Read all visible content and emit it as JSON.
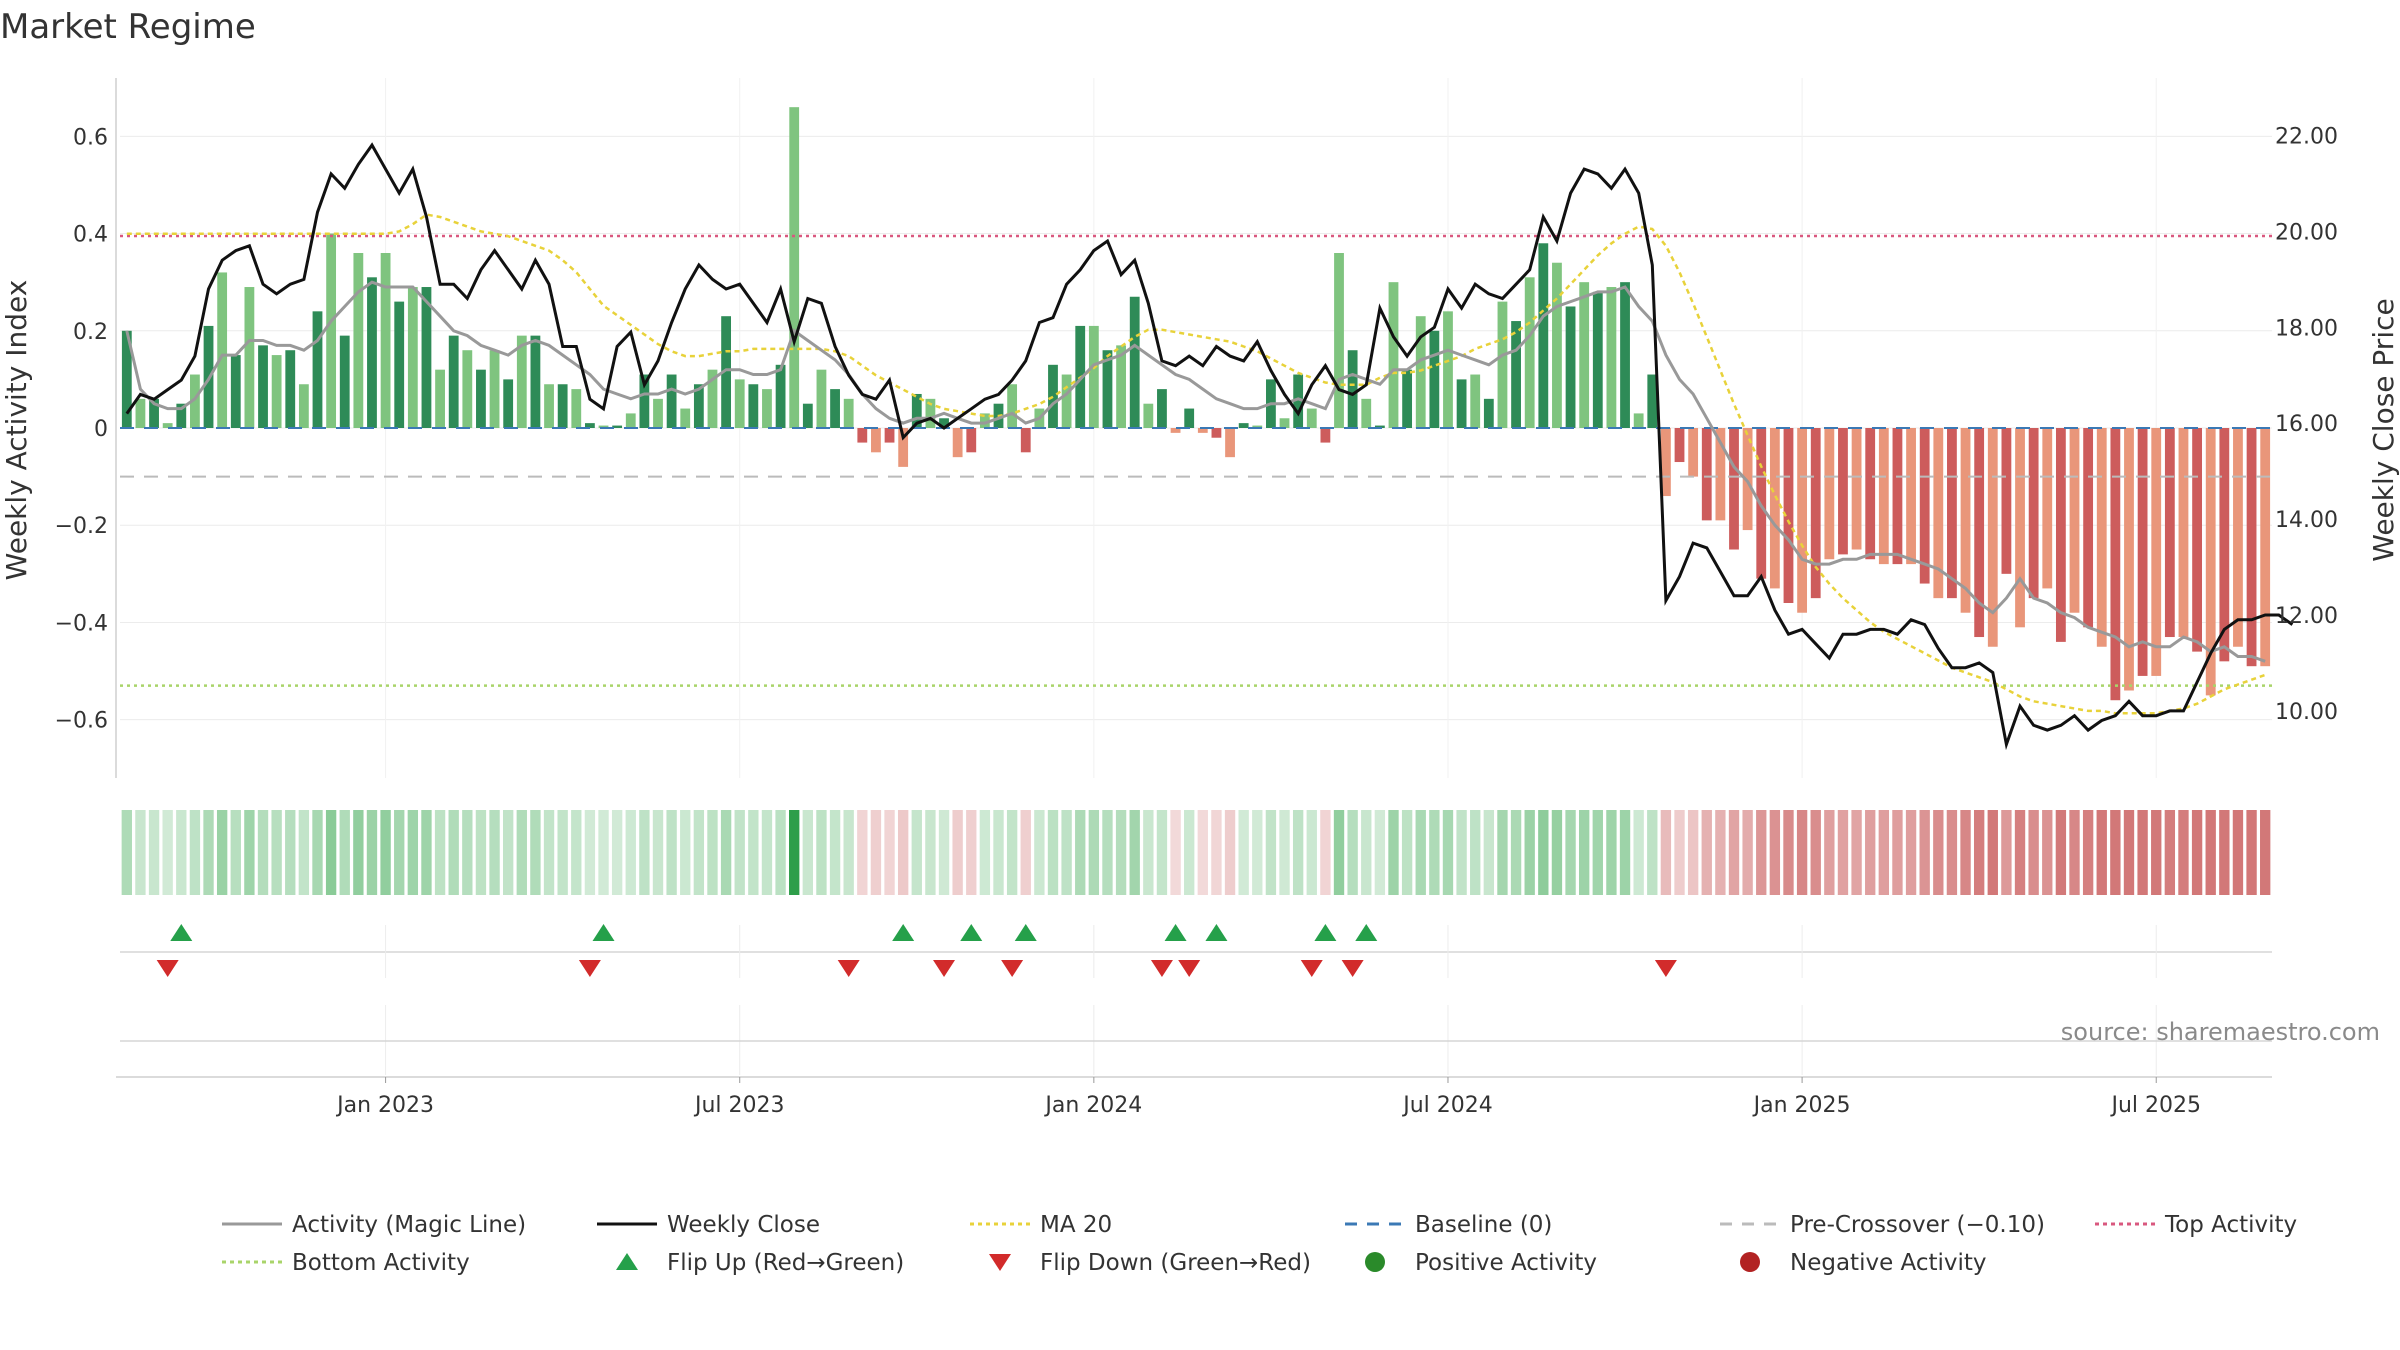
{
  "chart_data": {
    "type": "bar",
    "title": "Market Regime",
    "ylabel": "Weekly Activity Index",
    "y2label": "Weekly Close Price",
    "ylim": [
      -0.72,
      0.72
    ],
    "y2lim": [
      8.6,
      23.2
    ],
    "yticks": [
      {
        "value": 0.6,
        "label": "0.6"
      },
      {
        "value": 0.4,
        "label": "0.4"
      },
      {
        "value": 0.2,
        "label": "0.2"
      },
      {
        "value": 0,
        "label": "0"
      },
      {
        "value": -0.2,
        "label": "−0.2"
      },
      {
        "value": -0.4,
        "label": "−0.4"
      },
      {
        "value": -0.6,
        "label": "−0.6"
      }
    ],
    "y2ticks": [
      {
        "value": 22,
        "label": "22.00"
      },
      {
        "value": 20,
        "label": "20.00"
      },
      {
        "value": 18,
        "label": "18.00"
      },
      {
        "value": 16,
        "label": "16.00"
      },
      {
        "value": 14,
        "label": "14.00"
      },
      {
        "value": 12,
        "label": "12.00"
      },
      {
        "value": 10,
        "label": "10.00"
      }
    ],
    "xticks": [
      {
        "week": 19,
        "label": "Jan 2023"
      },
      {
        "week": 45,
        "label": "Jul 2023"
      },
      {
        "week": 71,
        "label": "Jan 2024"
      },
      {
        "week": 97,
        "label": "Jul 2024"
      },
      {
        "week": 123,
        "label": "Jan 2025"
      },
      {
        "week": 149,
        "label": "Jul 2025"
      }
    ],
    "activity": [
      0.2,
      0.06,
      0.06,
      0.01,
      0.05,
      0.11,
      0.21,
      0.32,
      0.15,
      0.29,
      0.17,
      0.15,
      0.16,
      0.09,
      0.24,
      0.4,
      0.19,
      0.36,
      0.31,
      0.36,
      0.26,
      0.29,
      0.29,
      0.12,
      0.19,
      0.16,
      0.12,
      0.16,
      0.1,
      0.19,
      0.19,
      0.09,
      0.09,
      0.08,
      0.01,
      0.005,
      0.005,
      0.03,
      0.11,
      0.06,
      0.11,
      0.04,
      0.09,
      0.12,
      0.23,
      0.1,
      0.09,
      0.08,
      0.13,
      0.66,
      0.05,
      0.12,
      0.08,
      0.06,
      -0.03,
      -0.05,
      -0.03,
      -0.08,
      0.07,
      0.06,
      0.02,
      -0.06,
      -0.05,
      0.03,
      0.05,
      0.09,
      -0.05,
      0.04,
      0.13,
      0.11,
      0.21,
      0.21,
      0.16,
      0.17,
      0.27,
      0.05,
      0.08,
      -0.01,
      0.04,
      -0.01,
      -0.02,
      -0.06,
      0.01,
      0.005,
      0.1,
      0.02,
      0.11,
      0.04,
      -0.03,
      0.36,
      0.16,
      0.06,
      0.005,
      0.3,
      0.12,
      0.23,
      0.2,
      0.24,
      0.1,
      0.11,
      0.06,
      0.26,
      0.22,
      0.31,
      0.38,
      0.34,
      0.25,
      0.3,
      0.28,
      0.29,
      0.3,
      0.03,
      0.11,
      -0.14,
      -0.07,
      -0.1,
      -0.19,
      -0.19,
      -0.25,
      -0.21,
      -0.31,
      -0.33,
      -0.36,
      -0.38,
      -0.35,
      -0.27,
      -0.26,
      -0.25,
      -0.27,
      -0.28,
      -0.28,
      -0.28,
      -0.32,
      -0.35,
      -0.35,
      -0.38,
      -0.43,
      -0.45,
      -0.3,
      -0.41,
      -0.35,
      -0.33,
      -0.44,
      -0.38,
      -0.41,
      -0.45,
      -0.56,
      -0.54,
      -0.51,
      -0.51,
      -0.43,
      -0.43,
      -0.46,
      -0.55,
      -0.48,
      -0.45,
      -0.49,
      -0.49
    ],
    "close": [
      16.2,
      16.6,
      16.5,
      16.7,
      16.9,
      17.4,
      18.8,
      19.4,
      19.6,
      19.7,
      18.9,
      18.7,
      18.9,
      19.0,
      20.4,
      21.2,
      20.9,
      21.4,
      21.8,
      21.3,
      20.8,
      21.3,
      20.3,
      18.9,
      18.9,
      18.6,
      19.2,
      19.6,
      19.2,
      18.8,
      19.4,
      18.9,
      17.6,
      17.6,
      16.5,
      16.3,
      17.6,
      17.9,
      16.8,
      17.3,
      18.1,
      18.8,
      19.3,
      19.0,
      18.8,
      18.9,
      18.5,
      18.1,
      18.8,
      17.7,
      18.6,
      18.5,
      17.6,
      17.0,
      16.6,
      16.5,
      16.9,
      15.7,
      16.0,
      16.1,
      15.9,
      16.1,
      16.3,
      16.5,
      16.6,
      16.9,
      17.3,
      18.1,
      18.2,
      18.9,
      19.2,
      19.6,
      19.8,
      19.1,
      19.4,
      18.5,
      17.3,
      17.2,
      17.4,
      17.2,
      17.6,
      17.4,
      17.3,
      17.7,
      17.1,
      16.6,
      16.2,
      16.8,
      17.2,
      16.7,
      16.6,
      16.8,
      18.4,
      17.8,
      17.4,
      17.8,
      18.0,
      18.8,
      18.4,
      18.9,
      18.7,
      18.6,
      18.9,
      19.2,
      20.3,
      19.8,
      20.8,
      21.3,
      21.2,
      20.9,
      21.3,
      20.8,
      19.3,
      12.3,
      12.8,
      13.5,
      13.4,
      12.9,
      12.4,
      12.4,
      12.8,
      12.1,
      11.6,
      11.7,
      11.4,
      11.1,
      11.6,
      11.6,
      11.7,
      11.7,
      11.6,
      11.9,
      11.8,
      11.3,
      10.9,
      10.9,
      11.0,
      10.8,
      9.3,
      10.1,
      9.7,
      9.6,
      9.7,
      9.9,
      9.6,
      9.8,
      9.9,
      10.2,
      9.9,
      9.9,
      10.0,
      10.0,
      10.6,
      11.2,
      11.7,
      11.9,
      11.9,
      12.0,
      12.0,
      11.8
    ],
    "magic_line": [
      0.2,
      0.08,
      0.05,
      0.04,
      0.04,
      0.06,
      0.1,
      0.15,
      0.15,
      0.18,
      0.18,
      0.17,
      0.17,
      0.16,
      0.18,
      0.22,
      0.25,
      0.28,
      0.3,
      0.29,
      0.29,
      0.29,
      0.26,
      0.23,
      0.2,
      0.19,
      0.17,
      0.16,
      0.15,
      0.17,
      0.18,
      0.17,
      0.15,
      0.13,
      0.11,
      0.08,
      0.07,
      0.06,
      0.07,
      0.07,
      0.08,
      0.07,
      0.08,
      0.1,
      0.12,
      0.12,
      0.11,
      0.11,
      0.12,
      0.2,
      0.18,
      0.16,
      0.14,
      0.11,
      0.07,
      0.04,
      0.02,
      0.01,
      0.02,
      0.02,
      0.03,
      0.02,
      0.01,
      0.01,
      0.02,
      0.03,
      0.01,
      0.02,
      0.05,
      0.07,
      0.1,
      0.13,
      0.14,
      0.15,
      0.17,
      0.15,
      0.13,
      0.11,
      0.1,
      0.08,
      0.06,
      0.05,
      0.04,
      0.04,
      0.05,
      0.05,
      0.06,
      0.05,
      0.04,
      0.1,
      0.11,
      0.1,
      0.09,
      0.12,
      0.12,
      0.14,
      0.15,
      0.16,
      0.15,
      0.14,
      0.13,
      0.15,
      0.16,
      0.19,
      0.23,
      0.25,
      0.26,
      0.27,
      0.28,
      0.28,
      0.29,
      0.25,
      0.22,
      0.15,
      0.1,
      0.07,
      0.02,
      -0.03,
      -0.08,
      -0.11,
      -0.16,
      -0.2,
      -0.23,
      -0.27,
      -0.28,
      -0.28,
      -0.27,
      -0.27,
      -0.26,
      -0.26,
      -0.26,
      -0.27,
      -0.28,
      -0.29,
      -0.31,
      -0.33,
      -0.36,
      -0.38,
      -0.35,
      -0.31,
      -0.35,
      -0.36,
      -0.38,
      -0.39,
      -0.41,
      -0.42,
      -0.43,
      -0.45,
      -0.44,
      -0.45,
      -0.45,
      -0.43,
      -0.44,
      -0.46,
      -0.45,
      -0.47,
      -0.47,
      -0.48
    ],
    "ma20": [
      19.95,
      19.95,
      19.95,
      19.95,
      19.95,
      19.95,
      19.95,
      19.95,
      19.95,
      19.95,
      19.95,
      19.95,
      19.95,
      19.95,
      19.95,
      19.95,
      19.95,
      19.95,
      19.95,
      19.95,
      20.0,
      20.15,
      20.35,
      20.3,
      20.2,
      20.1,
      20.0,
      19.95,
      19.9,
      19.8,
      19.7,
      19.6,
      19.4,
      19.15,
      18.8,
      18.45,
      18.25,
      18.05,
      17.85,
      17.65,
      17.5,
      17.4,
      17.4,
      17.45,
      17.5,
      17.5,
      17.55,
      17.55,
      17.55,
      17.55,
      17.55,
      17.55,
      17.5,
      17.4,
      17.2,
      17.0,
      16.85,
      16.7,
      16.55,
      16.4,
      16.3,
      16.25,
      16.2,
      16.15,
      16.15,
      16.2,
      16.3,
      16.4,
      16.55,
      16.75,
      16.95,
      17.15,
      17.4,
      17.6,
      17.8,
      17.95,
      17.95,
      17.9,
      17.85,
      17.8,
      17.75,
      17.7,
      17.6,
      17.5,
      17.35,
      17.2,
      17.05,
      16.95,
      16.85,
      16.8,
      16.8,
      16.8,
      16.95,
      17.05,
      17.05,
      17.1,
      17.2,
      17.3,
      17.4,
      17.55,
      17.65,
      17.75,
      17.9,
      18.1,
      18.35,
      18.6,
      18.9,
      19.2,
      19.5,
      19.75,
      19.95,
      20.1,
      20.05,
      19.7,
      19.15,
      18.5,
      17.8,
      17.1,
      16.4,
      15.75,
      15.1,
      14.5,
      13.95,
      13.45,
      13.0,
      12.65,
      12.35,
      12.1,
      11.85,
      11.65,
      11.5,
      11.35,
      11.2,
      11.05,
      10.9,
      10.8,
      10.7,
      10.6,
      10.45,
      10.3,
      10.2,
      10.15,
      10.1,
      10.05,
      10.0,
      10.0,
      9.95,
      9.95,
      9.95,
      9.95,
      10.0,
      10.05,
      10.15,
      10.3,
      10.45,
      10.55,
      10.65,
      10.75
    ],
    "thresholds": {
      "top": 0.395,
      "bottom": -0.53,
      "pre_crossover": -0.1,
      "baseline": 0
    },
    "flip_up_weeks": [
      4,
      35,
      57,
      62,
      66,
      77,
      80,
      88,
      91
    ],
    "flip_down_weeks": [
      3,
      34,
      53,
      60,
      65,
      76,
      78,
      87,
      90,
      113
    ],
    "regime_strip": "bars per week tinted by activity sign and strength",
    "legend": [
      {
        "key": "magic",
        "label": "Activity (Magic Line)",
        "color": "#999999"
      },
      {
        "key": "close",
        "label": "Weekly Close",
        "color": "#111111"
      },
      {
        "key": "ma",
        "label": "MA 20",
        "color": "#e8d23a"
      },
      {
        "key": "baseline",
        "label": "Baseline (0)",
        "color": "#3b79b5"
      },
      {
        "key": "precross",
        "label": "Pre-Crossover (−0.10)",
        "color": "#bbbbbb"
      },
      {
        "key": "top",
        "label": "Top Activity",
        "color": "#d9587f"
      },
      {
        "key": "bottom",
        "label": "Bottom Activity",
        "color": "#a9d46a"
      },
      {
        "key": "flipup",
        "label": "Flip Up (Red→Green)",
        "color": "#25a04a"
      },
      {
        "key": "flipdown",
        "label": "Flip Down (Green→Red)",
        "color": "#d22b2b"
      },
      {
        "key": "pos",
        "label": "Positive Activity",
        "color": "#2a8a2a"
      },
      {
        "key": "neg",
        "label": "Negative Activity",
        "color": "#b22222"
      }
    ],
    "grid": true
  },
  "source_text": "source: sharemaestro.com"
}
